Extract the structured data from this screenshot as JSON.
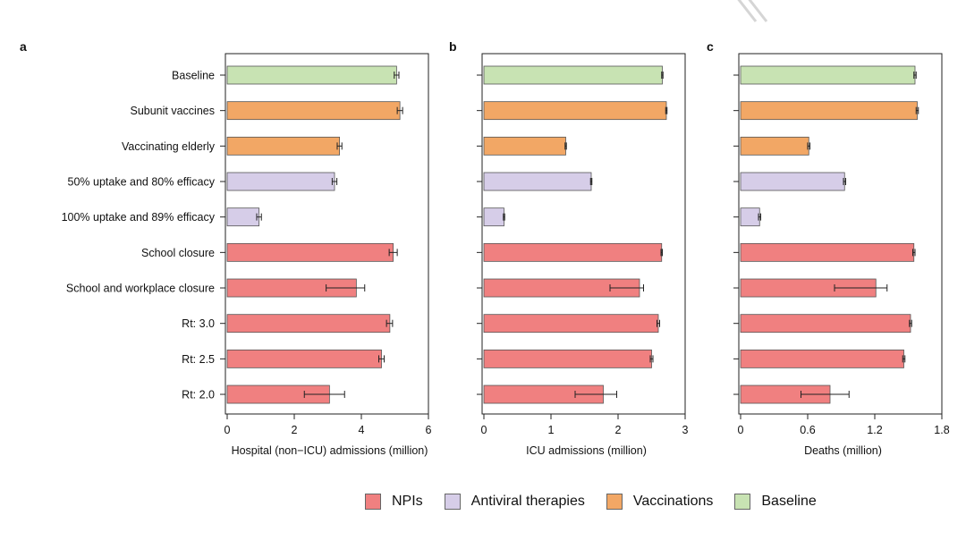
{
  "chart_data": [
    {
      "panel": "a",
      "type": "bar",
      "orientation": "horizontal",
      "categories": [
        "Baseline",
        "Subunit vaccines",
        "Vaccinating elderly",
        "50% uptake and 80% efficacy",
        "100% uptake and 89% efficacy",
        "School closure",
        "School and workplace closure",
        "Rt: 3.0",
        "Rt: 2.5",
        "Rt: 2.0"
      ],
      "groups": [
        "Baseline",
        "Vaccinations",
        "Vaccinations",
        "Antiviral therapies",
        "Antiviral therapies",
        "NPIs",
        "NPIs",
        "NPIs",
        "NPIs",
        "NPIs"
      ],
      "values": [
        5.05,
        5.15,
        3.35,
        3.2,
        0.95,
        4.95,
        3.85,
        4.85,
        4.6,
        3.05
      ],
      "err_low": [
        4.98,
        5.07,
        3.28,
        3.13,
        0.88,
        4.83,
        2.95,
        4.75,
        4.52,
        2.3
      ],
      "err_high": [
        5.12,
        5.23,
        3.42,
        3.27,
        1.02,
        5.07,
        4.1,
        4.93,
        4.68,
        3.5
      ],
      "xlabel": "Hospital (non−ICU) admissions (million)",
      "xlim": [
        0,
        6
      ],
      "xticks": [
        0,
        2,
        4,
        6
      ],
      "xtick_labels": [
        "0",
        "2",
        "4",
        "6"
      ]
    },
    {
      "panel": "b",
      "type": "bar",
      "orientation": "horizontal",
      "categories": [
        "Baseline",
        "Subunit vaccines",
        "Vaccinating elderly",
        "50% uptake and 80% efficacy",
        "100% uptake and 89% efficacy",
        "School closure",
        "School and workplace closure",
        "Rt: 3.0",
        "Rt: 2.5",
        "Rt: 2.0"
      ],
      "groups": [
        "Baseline",
        "Vaccinations",
        "Vaccinations",
        "Antiviral therapies",
        "Antiviral therapies",
        "NPIs",
        "NPIs",
        "NPIs",
        "NPIs",
        "NPIs"
      ],
      "values": [
        2.66,
        2.72,
        1.22,
        1.6,
        0.3,
        2.65,
        2.32,
        2.6,
        2.5,
        1.78
      ],
      "err_low": [
        2.65,
        2.71,
        1.21,
        1.59,
        0.29,
        2.64,
        1.88,
        2.58,
        2.48,
        1.36
      ],
      "err_high": [
        2.67,
        2.73,
        1.23,
        1.61,
        0.31,
        2.66,
        2.38,
        2.62,
        2.52,
        1.98
      ],
      "xlabel": "ICU admissions (million)",
      "xlim": [
        0,
        3
      ],
      "xticks": [
        0,
        1,
        2,
        3
      ],
      "xtick_labels": [
        "0",
        "1",
        "2",
        "3"
      ]
    },
    {
      "panel": "c",
      "type": "bar",
      "orientation": "horizontal",
      "categories": [
        "Baseline",
        "Subunit vaccines",
        "Vaccinating elderly",
        "50% uptake and 80% efficacy",
        "100% uptake and 89% efficacy",
        "School closure",
        "School and workplace closure",
        "Rt: 3.0",
        "Rt: 2.5",
        "Rt: 2.0"
      ],
      "groups": [
        "Baseline",
        "Vaccinations",
        "Vaccinations",
        "Antiviral therapies",
        "Antiviral therapies",
        "NPIs",
        "NPIs",
        "NPIs",
        "NPIs",
        "NPIs"
      ],
      "values": [
        1.56,
        1.58,
        0.61,
        0.93,
        0.17,
        1.55,
        1.21,
        1.52,
        1.46,
        0.8
      ],
      "err_low": [
        1.55,
        1.57,
        0.6,
        0.92,
        0.16,
        1.54,
        0.84,
        1.51,
        1.45,
        0.54
      ],
      "err_high": [
        1.57,
        1.59,
        0.62,
        0.94,
        0.18,
        1.56,
        1.31,
        1.53,
        1.47,
        0.97
      ],
      "xlabel": "Deaths (million)",
      "xlim": [
        0,
        1.8
      ],
      "xticks": [
        0,
        0.6,
        1.2,
        1.8
      ],
      "xtick_labels": [
        "0",
        "0.6",
        "1.2",
        "1.8"
      ]
    }
  ],
  "legend": {
    "placement": "bottom-center",
    "items": [
      {
        "label": "NPIs",
        "color": "#f08080"
      },
      {
        "label": "Antiviral therapies",
        "color": "#d6cde8"
      },
      {
        "label": "Vaccinations",
        "color": "#f2a765"
      },
      {
        "label": "Baseline",
        "color": "#c8e3b3"
      }
    ]
  },
  "colors": {
    "NPIs": "#f08080",
    "Antiviral therapies": "#d6cde8",
    "Vaccinations": "#f2a765",
    "Baseline": "#c8e3b3",
    "bar_outline": "#555555"
  },
  "watermark_icon": "diagonal-watermark-icon"
}
